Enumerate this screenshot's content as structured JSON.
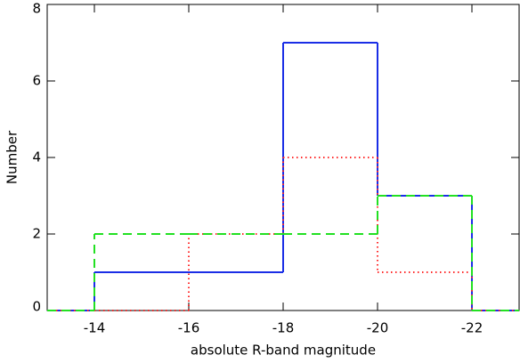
{
  "chart_data": {
    "type": "histogram-steps",
    "xlabel": "absolute R-band magnitude",
    "ylabel": "Number",
    "bins": [
      -14,
      -16,
      -18,
      -20,
      -22
    ],
    "series": [
      {
        "color": "#1a2ee6",
        "style": "solid",
        "values": [
          1,
          1,
          7,
          3
        ]
      },
      {
        "color": "#ff2a2a",
        "style": "dotted",
        "values": [
          0,
          2,
          4,
          1
        ]
      },
      {
        "color": "#22e022",
        "style": "dashed",
        "values": [
          2,
          2,
          2,
          3
        ]
      }
    ],
    "xlim": [
      -13,
      -23
    ],
    "ylim": [
      0,
      8
    ],
    "xticks": [
      -14,
      -16,
      -18,
      -20,
      -22
    ],
    "yticks": [
      0,
      2,
      4,
      6,
      8
    ]
  }
}
